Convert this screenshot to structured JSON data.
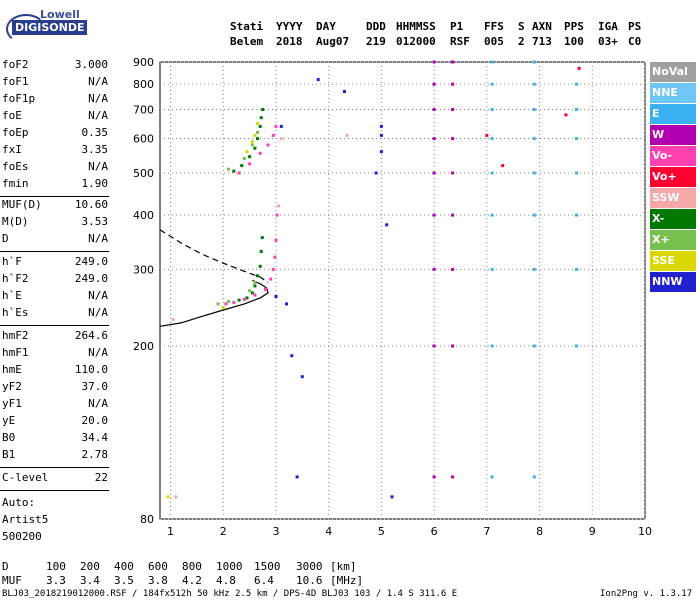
{
  "logo": {
    "line1": "Lowell",
    "line2": "DIGISONDE"
  },
  "header": {
    "row1": [
      "Stati",
      "YYYY",
      "DAY",
      "DDD",
      "HHMMSS",
      "P1",
      "FFS",
      "S",
      "AXN",
      "PPS",
      "IGA",
      "PS"
    ],
    "row2": [
      "Belem",
      "2018",
      "Aug07",
      "219",
      "012000",
      "RSF",
      "005",
      "2",
      "713",
      "100",
      "03+",
      "C0"
    ]
  },
  "params": {
    "group1": [
      {
        "name": "foF2",
        "value": "3.000"
      },
      {
        "name": "foF1",
        "value": "N/A"
      },
      {
        "name": "foF1p",
        "value": "N/A"
      },
      {
        "name": "foE",
        "value": "N/A"
      },
      {
        "name": "foEp",
        "value": "0.35"
      },
      {
        "name": "fxI",
        "value": "3.35"
      },
      {
        "name": "foEs",
        "value": "N/A"
      },
      {
        "name": "fmin",
        "value": "1.90"
      }
    ],
    "group2": [
      {
        "name": "MUF(D)",
        "value": "10.60"
      },
      {
        "name": "M(D)",
        "value": "3.53"
      },
      {
        "name": "D",
        "value": "N/A"
      }
    ],
    "group3": [
      {
        "name": "h`F",
        "value": "249.0"
      },
      {
        "name": "h`F2",
        "value": "249.0"
      },
      {
        "name": "h`E",
        "value": "N/A"
      },
      {
        "name": "h`Es",
        "value": "N/A"
      }
    ],
    "group4": [
      {
        "name": "hmF2",
        "value": "264.6"
      },
      {
        "name": "hmF1",
        "value": "N/A"
      },
      {
        "name": "hmE",
        "value": "110.0"
      },
      {
        "name": "yF2",
        "value": "37.0"
      },
      {
        "name": "yF1",
        "value": "N/A"
      },
      {
        "name": "yE",
        "value": "20.0"
      },
      {
        "name": "B0",
        "value": "34.4"
      },
      {
        "name": "B1",
        "value": "2.78"
      }
    ],
    "group5": [
      {
        "name": "C-level",
        "value": "22"
      }
    ],
    "auto": [
      "Auto:",
      "Artist5",
      "500200"
    ]
  },
  "legend": [
    {
      "label": "NoVal",
      "color": "#a0a0a0"
    },
    {
      "label": "NNE",
      "color": "#6ec6f5"
    },
    {
      "label": "E",
      "color": "#3bb0f0"
    },
    {
      "label": "W",
      "color": "#b000b0"
    },
    {
      "label": "Vo-",
      "color": "#ff40b0"
    },
    {
      "label": "Vo+",
      "color": "#ff0030"
    },
    {
      "label": "SSW",
      "color": "#f5a8a8"
    },
    {
      "label": "X-",
      "color": "#007800"
    },
    {
      "label": "X+",
      "color": "#78c050"
    },
    {
      "label": "SSE",
      "color": "#d8d800"
    },
    {
      "label": "NNW",
      "color": "#2020d0"
    }
  ],
  "footer": {
    "d_label": "D",
    "d_values": [
      "100",
      "200",
      "400",
      "600",
      "800",
      "1000",
      "1500",
      "3000"
    ],
    "d_unit": "[km]",
    "muf_label": "MUF",
    "muf_values": [
      "3.3",
      "3.4",
      "3.5",
      "3.8",
      "4.2",
      "4.8",
      "6.4",
      "10.6"
    ],
    "muf_unit": "[MHz]",
    "file_info": "BLJ03_2018219012000.RSF / 184fx512h 50 kHz 2.5 km / DPS-4D BLJ03 103 / 1.4 S 311.6 E",
    "version": "Ion2Png v. 1.3.17"
  },
  "chart_data": {
    "type": "scatter",
    "xlabel": "",
    "ylabel": "",
    "xlim": [
      0.8,
      10
    ],
    "ylim": [
      80,
      900
    ],
    "y_scale": "log",
    "x_ticks": [
      1,
      2,
      3,
      4,
      5,
      6,
      7,
      8,
      9,
      10
    ],
    "y_ticks": [
      80,
      200,
      300,
      400,
      500,
      600,
      700,
      800,
      900
    ],
    "series": [
      {
        "name": "X-",
        "color": "#007800",
        "points": [
          [
            2.3,
            255
          ],
          [
            2.45,
            258
          ],
          [
            2.55,
            265
          ],
          [
            2.6,
            275
          ],
          [
            2.65,
            290
          ],
          [
            2.7,
            305
          ],
          [
            2.72,
            330
          ],
          [
            2.74,
            355
          ],
          [
            2.35,
            520
          ],
          [
            2.5,
            545
          ],
          [
            2.6,
            570
          ],
          [
            2.65,
            600
          ],
          [
            2.7,
            640
          ],
          [
            2.72,
            670
          ],
          [
            2.75,
            700
          ],
          [
            2.2,
            505
          ]
        ]
      },
      {
        "name": "Vo-",
        "color": "#ff40b0",
        "points": [
          [
            2.05,
            250
          ],
          [
            2.2,
            252
          ],
          [
            2.4,
            256
          ],
          [
            2.6,
            262
          ],
          [
            2.8,
            270
          ],
          [
            2.9,
            285
          ],
          [
            2.95,
            300
          ],
          [
            2.98,
            320
          ],
          [
            3.0,
            350
          ],
          [
            3.02,
            400
          ],
          [
            2.3,
            500
          ],
          [
            2.5,
            525
          ],
          [
            2.7,
            555
          ],
          [
            2.85,
            580
          ],
          [
            2.95,
            610
          ],
          [
            3.0,
            640
          ]
        ]
      },
      {
        "name": "X+",
        "color": "#78c050",
        "points": [
          [
            1.9,
            250
          ],
          [
            2.1,
            253
          ],
          [
            2.5,
            268
          ],
          [
            2.6,
            280
          ],
          [
            2.1,
            510
          ],
          [
            2.4,
            540
          ],
          [
            2.55,
            580
          ],
          [
            2.65,
            620
          ]
        ]
      },
      {
        "name": "SSE",
        "color": "#d8d800",
        "points": [
          [
            2.45,
            560
          ],
          [
            2.55,
            590
          ],
          [
            2.6,
            610
          ],
          [
            2.65,
            650
          ],
          [
            2.0,
            245
          ],
          [
            0.95,
            90
          ]
        ]
      },
      {
        "name": "NNW",
        "color": "#2020d0",
        "points": [
          [
            3.0,
            260
          ],
          [
            3.1,
            640
          ],
          [
            3.2,
            250
          ],
          [
            3.3,
            190
          ],
          [
            3.4,
            100
          ],
          [
            3.5,
            170
          ],
          [
            3.8,
            820
          ],
          [
            4.3,
            770
          ],
          [
            4.9,
            500
          ],
          [
            5.0,
            560
          ],
          [
            5.0,
            610
          ],
          [
            5.0,
            640
          ],
          [
            5.1,
            380
          ],
          [
            5.2,
            90
          ]
        ]
      },
      {
        "name": "W",
        "color": "#b000b0",
        "points": [
          [
            6.0,
            100
          ],
          [
            6.0,
            200
          ],
          [
            6.0,
            300
          ],
          [
            6.0,
            400
          ],
          [
            6.0,
            500
          ],
          [
            6.0,
            600
          ],
          [
            6.0,
            700
          ],
          [
            6.0,
            800
          ],
          [
            6.0,
            900
          ],
          [
            6.35,
            100
          ],
          [
            6.35,
            200
          ],
          [
            6.35,
            300
          ],
          [
            6.35,
            400
          ],
          [
            6.35,
            500
          ],
          [
            6.35,
            600
          ],
          [
            6.35,
            700
          ],
          [
            6.35,
            800
          ],
          [
            6.35,
            900
          ]
        ]
      },
      {
        "name": "E",
        "color": "#3bb0f0",
        "points": [
          [
            7.1,
            100
          ],
          [
            7.1,
            200
          ],
          [
            7.1,
            300
          ],
          [
            7.1,
            400
          ],
          [
            7.1,
            500
          ],
          [
            7.1,
            600
          ],
          [
            7.1,
            700
          ],
          [
            7.1,
            800
          ],
          [
            7.1,
            900
          ],
          [
            7.9,
            100
          ],
          [
            7.9,
            200
          ],
          [
            7.9,
            300
          ],
          [
            7.9,
            400
          ],
          [
            7.9,
            500
          ],
          [
            7.9,
            600
          ],
          [
            7.9,
            700
          ],
          [
            7.9,
            800
          ],
          [
            7.9,
            900
          ],
          [
            8.7,
            200
          ],
          [
            8.7,
            300
          ],
          [
            8.7,
            400
          ],
          [
            8.7,
            500
          ],
          [
            8.7,
            600
          ],
          [
            8.7,
            700
          ],
          [
            8.7,
            800
          ]
        ]
      },
      {
        "name": "SSW",
        "color": "#f5a8a8",
        "points": [
          [
            3.05,
            420
          ],
          [
            3.1,
            600
          ],
          [
            1.05,
            230
          ],
          [
            1.1,
            90
          ],
          [
            4.35,
            610
          ]
        ]
      },
      {
        "name": "Vo+",
        "color": "#ff0030",
        "points": [
          [
            7.0,
            610
          ],
          [
            7.3,
            520
          ],
          [
            8.5,
            680
          ],
          [
            8.75,
            870
          ]
        ]
      }
    ],
    "curves": [
      {
        "name": "profile-solid",
        "style": "solid",
        "points": [
          [
            0.8,
            222
          ],
          [
            1.2,
            226
          ],
          [
            1.6,
            234
          ],
          [
            2.0,
            242
          ],
          [
            2.4,
            250
          ],
          [
            2.7,
            258
          ],
          [
            2.85,
            265
          ],
          [
            2.82,
            272
          ],
          [
            2.7,
            278
          ],
          [
            2.55,
            283
          ]
        ]
      },
      {
        "name": "profile-dashed",
        "style": "dashed",
        "points": [
          [
            0.8,
            370
          ],
          [
            1.2,
            345
          ],
          [
            1.6,
            325
          ],
          [
            2.0,
            310
          ],
          [
            2.4,
            297
          ],
          [
            2.7,
            288
          ],
          [
            2.85,
            280
          ]
        ]
      }
    ]
  }
}
